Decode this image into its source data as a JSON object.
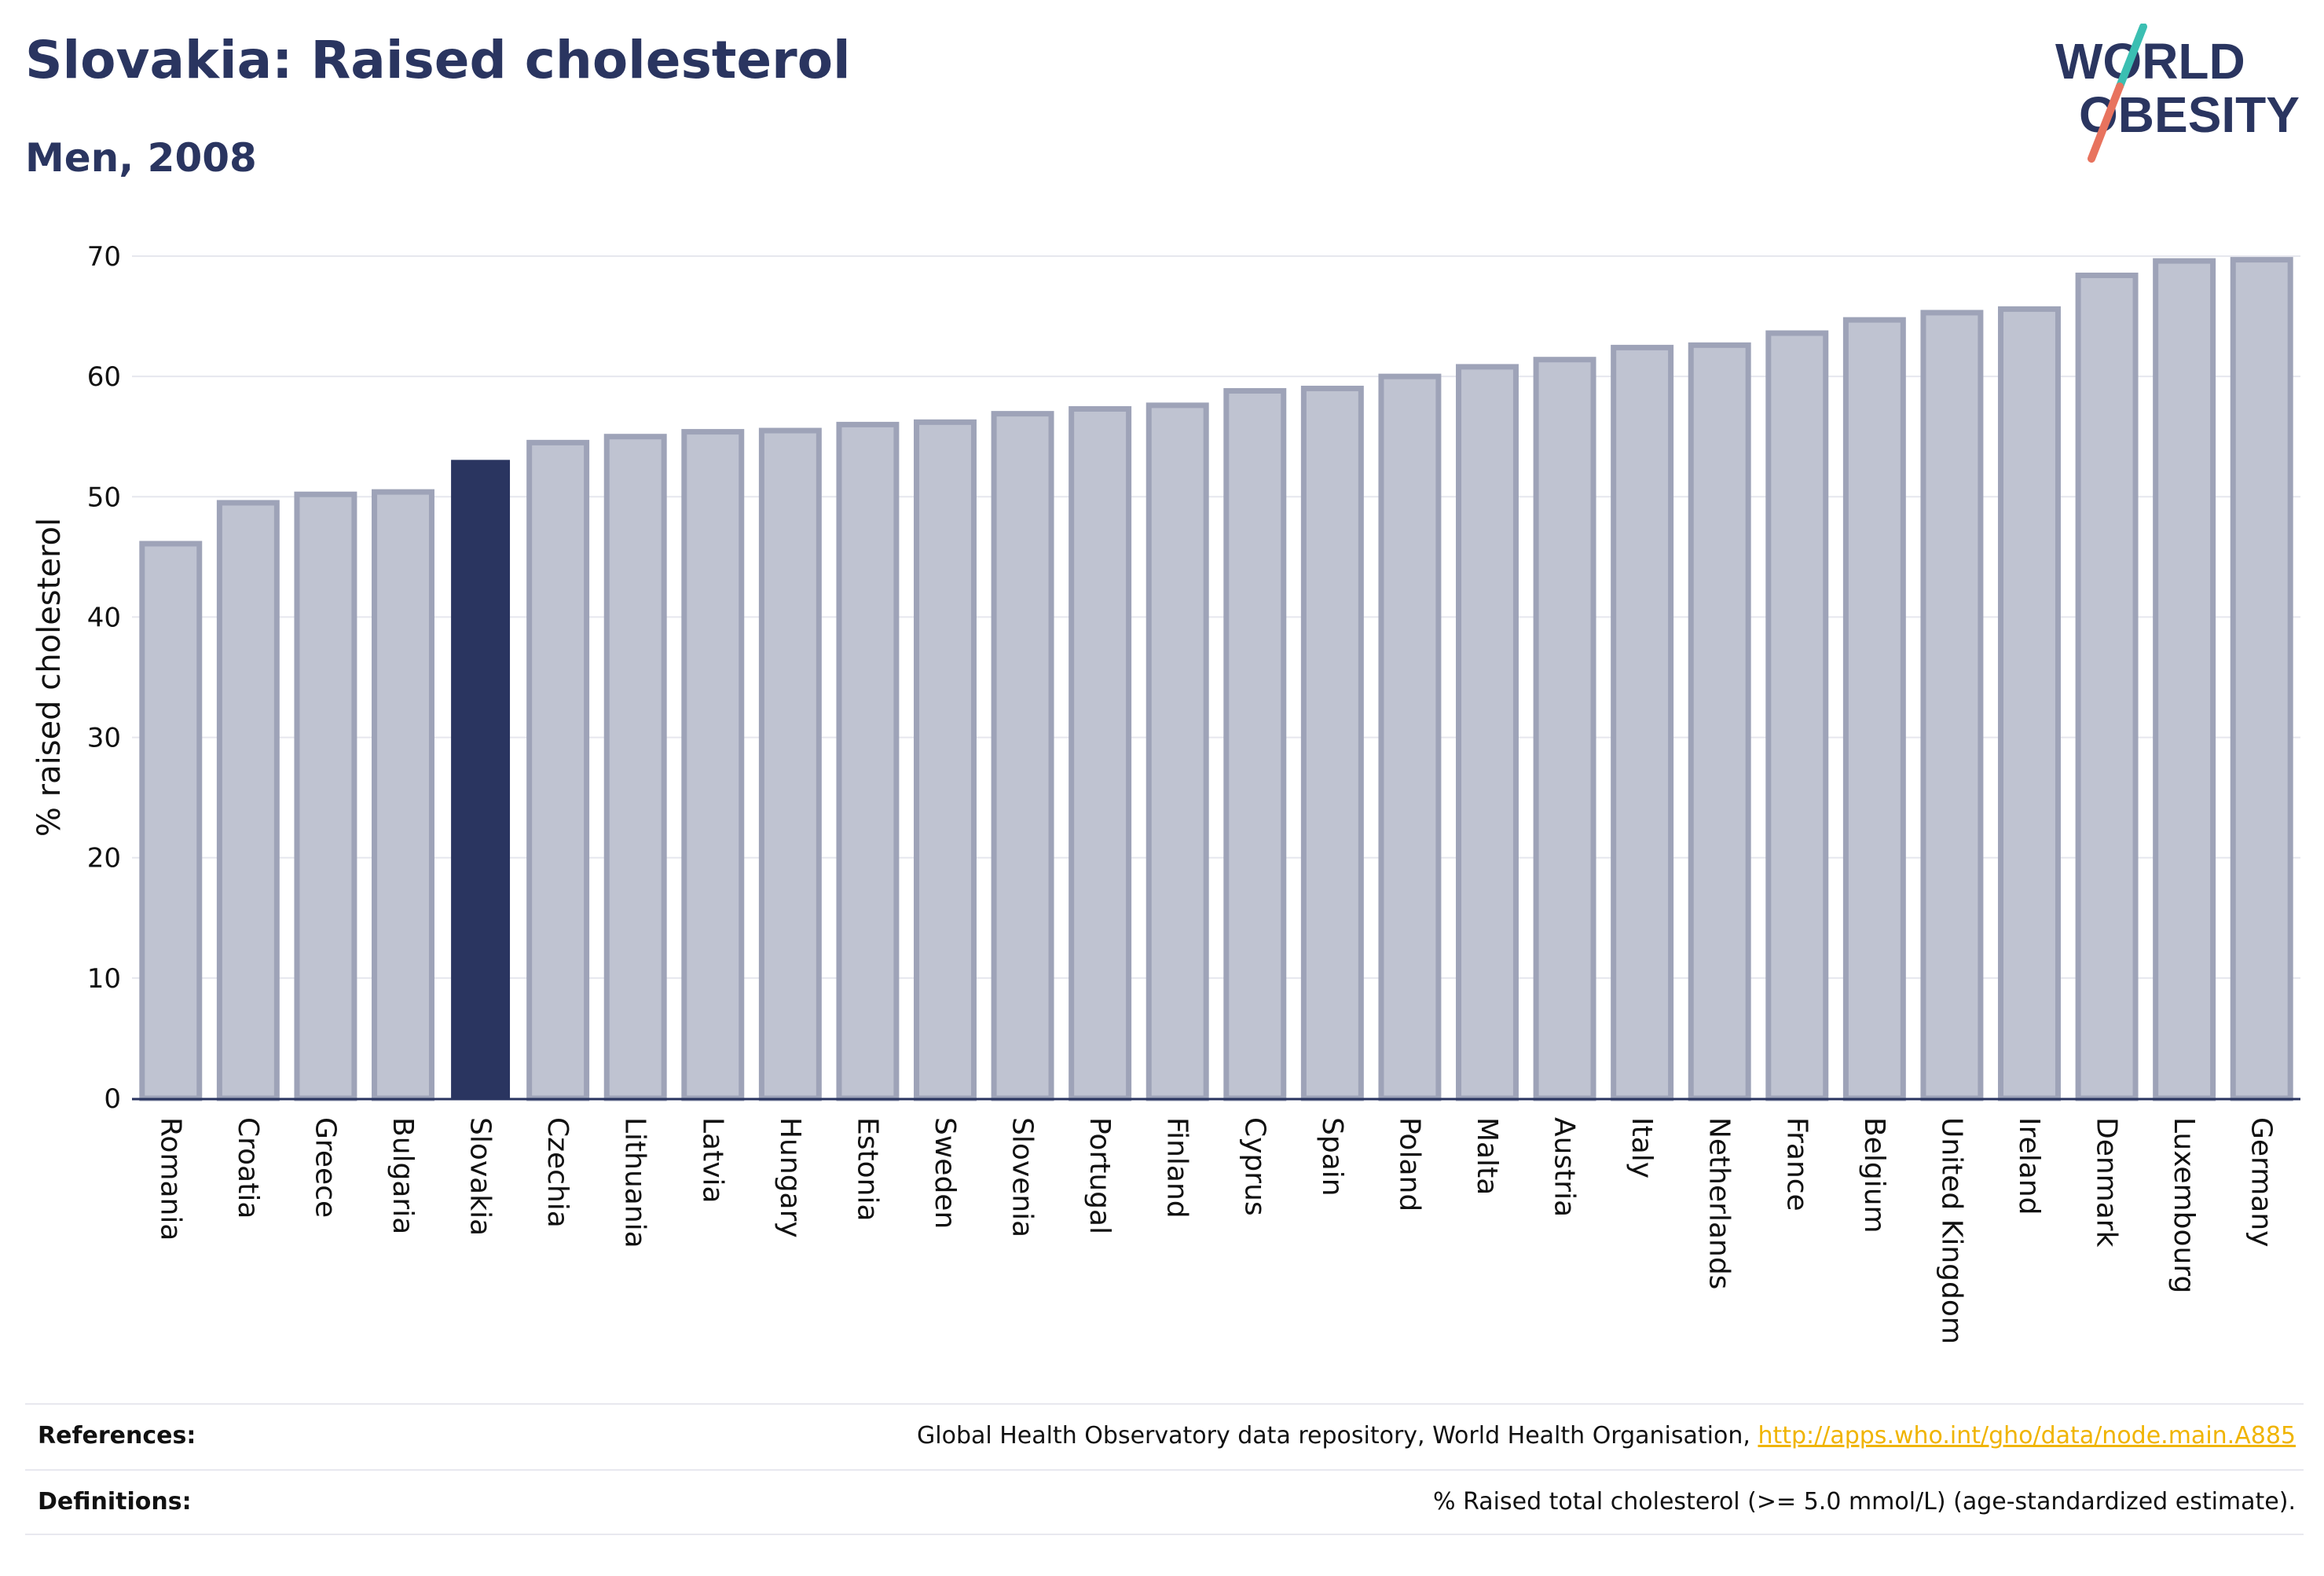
{
  "header": {
    "title": "Slovakia: Raised cholesterol",
    "subtitle": "Men, 2008"
  },
  "logo": {
    "line1": "WORLD",
    "line2": "OBESITY"
  },
  "colors": {
    "highlight_bar": "#2a3560",
    "other_bar_fill": "#bfc3d1",
    "other_bar_stroke": "#9ea3b8",
    "logo_teal": "#3bbfb2",
    "logo_coral": "#e8735e"
  },
  "chart_data": {
    "type": "bar",
    "title": "Slovakia: Raised cholesterol",
    "subtitle": "Men, 2008",
    "ylabel": "% raised cholesterol",
    "xlabel": "",
    "ylim": [
      0,
      70
    ],
    "yticks": [
      0,
      10,
      20,
      30,
      40,
      50,
      60,
      70
    ],
    "grid": true,
    "highlight": "Slovakia",
    "categories": [
      "Romania",
      "Croatia",
      "Greece",
      "Bulgaria",
      "Slovakia",
      "Czechia",
      "Lithuania",
      "Latvia",
      "Hungary",
      "Estonia",
      "Sweden",
      "Slovenia",
      "Portugal",
      "Finland",
      "Cyprus",
      "Spain",
      "Poland",
      "Malta",
      "Austria",
      "Italy",
      "Netherlands",
      "France",
      "Belgium",
      "United Kingdom",
      "Ireland",
      "Denmark",
      "Luxembourg",
      "Germany"
    ],
    "values": [
      46.1,
      49.5,
      50.2,
      50.4,
      53.0,
      54.5,
      55.0,
      55.4,
      55.5,
      56.0,
      56.2,
      56.9,
      57.3,
      57.6,
      58.8,
      59.0,
      60.0,
      60.8,
      61.4,
      62.4,
      62.6,
      63.6,
      64.7,
      65.3,
      65.6,
      68.4,
      69.6,
      69.7
    ]
  },
  "footer": {
    "references_label": "References:",
    "references_text": "Global Health Observatory data repository, World Health Organisation, ",
    "references_link": "http://apps.who.int/gho/data/node.main.A885",
    "definitions_label": "Definitions:",
    "definitions_text": "% Raised total cholesterol (>= 5.0 mmol/L) (age-standardized estimate)."
  }
}
